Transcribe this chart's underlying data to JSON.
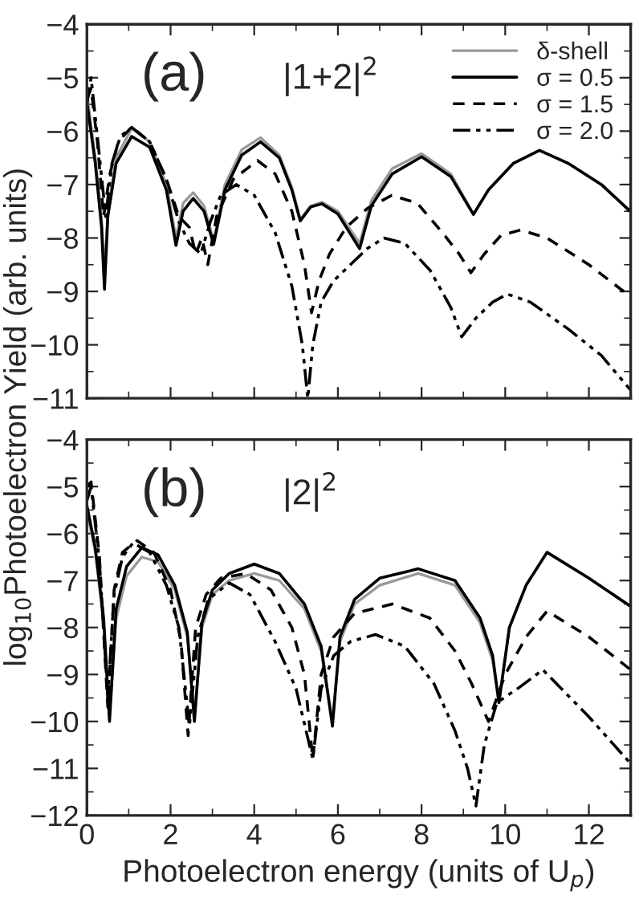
{
  "chart_data": [
    {
      "type": "line",
      "annotations": [
        "(a)",
        "|1+2|$^{2}$"
      ],
      "xlim": [
        0,
        13
      ],
      "xticks": [
        0,
        2,
        4,
        6,
        8,
        10,
        12
      ],
      "ylim": [
        -11,
        -4
      ],
      "yticks": [
        -11,
        -10,
        -9,
        -8,
        -7,
        -6,
        -5,
        -4
      ],
      "tick_labels": "y",
      "legend": "top right",
      "grid": false,
      "series": [
        {
          "name": "δ-shell",
          "color": "#999999",
          "line_style": "solid",
          "x": [
            0,
            0.2,
            0.35,
            0.42,
            0.5,
            0.7,
            1.07,
            1.5,
            1.9,
            2.13,
            2.3,
            2.54,
            2.8,
            3.03,
            3.3,
            3.7,
            4.15,
            4.6,
            4.9,
            5.1,
            5.35,
            5.62,
            6.0,
            6.52,
            6.8,
            7.3,
            8.0,
            8.7,
            9.24,
            9.6,
            10.2,
            10.82,
            11.5,
            12.3,
            13
          ],
          "values": [
            -5.3,
            -6.5,
            -7.6,
            -8.7,
            -7.5,
            -6.5,
            -5.95,
            -6.2,
            -7.0,
            -8.0,
            -7.35,
            -7.15,
            -7.4,
            -8.05,
            -7.0,
            -6.35,
            -6.12,
            -6.45,
            -7.05,
            -7.65,
            -7.4,
            -7.33,
            -7.5,
            -8.1,
            -7.3,
            -6.7,
            -6.42,
            -6.8,
            -7.55,
            -7.1,
            -6.6,
            -6.36,
            -6.6,
            -7.0,
            -7.5
          ]
        },
        {
          "name": "σ = 0.5",
          "color": "#000000",
          "line_style": "solid",
          "x": [
            0,
            0.2,
            0.35,
            0.42,
            0.5,
            0.7,
            1.07,
            1.5,
            1.9,
            2.13,
            2.3,
            2.54,
            2.8,
            3.03,
            3.3,
            3.7,
            4.15,
            4.6,
            4.9,
            5.1,
            5.35,
            5.62,
            6.0,
            6.52,
            6.8,
            7.3,
            8.0,
            8.7,
            9.24,
            9.6,
            10.2,
            10.82,
            11.5,
            12.3,
            13
          ],
          "values": [
            -5.45,
            -6.6,
            -7.8,
            -8.96,
            -7.6,
            -6.6,
            -6.1,
            -6.3,
            -7.1,
            -8.14,
            -7.5,
            -7.26,
            -7.5,
            -8.12,
            -7.1,
            -6.45,
            -6.2,
            -6.5,
            -7.1,
            -7.68,
            -7.42,
            -7.36,
            -7.55,
            -8.2,
            -7.4,
            -6.8,
            -6.48,
            -6.85,
            -7.56,
            -7.1,
            -6.6,
            -6.36,
            -6.6,
            -7.0,
            -7.51
          ]
        },
        {
          "name": "σ = 1.5",
          "color": "#000000",
          "line_style": "dashed",
          "x": [
            0,
            0.1,
            0.25,
            0.4,
            0.55,
            0.75,
            1.07,
            1.5,
            1.9,
            2.2,
            2.45,
            2.6,
            2.75,
            2.89,
            3.1,
            3.5,
            4.08,
            4.5,
            4.9,
            5.2,
            5.37,
            5.55,
            5.8,
            6.2,
            6.7,
            7.29,
            7.9,
            8.5,
            8.9,
            9.18,
            9.5,
            9.9,
            10.37,
            11,
            12,
            13
          ],
          "values": [
            -5.4,
            -5.2,
            -6.2,
            -7.6,
            -6.8,
            -6.2,
            -5.92,
            -6.2,
            -6.9,
            -7.6,
            -7.8,
            -8.3,
            -8.0,
            -8.5,
            -7.6,
            -6.9,
            -6.55,
            -6.8,
            -7.5,
            -8.5,
            -9.4,
            -8.8,
            -8.3,
            -7.8,
            -7.45,
            -7.2,
            -7.35,
            -7.9,
            -8.3,
            -8.65,
            -8.3,
            -7.95,
            -7.85,
            -8.0,
            -8.5,
            -9.1
          ]
        },
        {
          "name": "σ = 2.0",
          "color": "#000000",
          "line_style": "dashdot",
          "x": [
            0,
            0.1,
            0.25,
            0.45,
            0.6,
            0.8,
            1.07,
            1.5,
            1.9,
            2.2,
            2.45,
            2.72,
            2.95,
            3.2,
            3.57,
            4.0,
            4.5,
            4.9,
            5.15,
            5.28,
            5.4,
            5.6,
            5.9,
            6.3,
            6.7,
            7.1,
            7.6,
            8.2,
            8.7,
            8.96,
            9.3,
            9.7,
            10.05,
            10.6,
            11.5,
            12.3,
            13
          ],
          "values": [
            -5.5,
            -5.0,
            -6.1,
            -7.6,
            -6.6,
            -6.1,
            -5.93,
            -6.2,
            -6.9,
            -7.7,
            -8.1,
            -8.3,
            -7.7,
            -7.2,
            -7.0,
            -7.2,
            -7.9,
            -8.9,
            -10.0,
            -11.0,
            -10.0,
            -9.2,
            -8.8,
            -8.5,
            -8.2,
            -8.0,
            -8.1,
            -8.6,
            -9.3,
            -9.85,
            -9.5,
            -9.2,
            -9.05,
            -9.2,
            -9.7,
            -10.2,
            -10.85
          ]
        }
      ]
    },
    {
      "type": "line",
      "annotations": [
        "(b)",
        "|2|$^{2}$"
      ],
      "xlabel": "Photoelectron energy (units of U$_{p}$)",
      "ylabel": "log$_{10}$Photoelectron Yield (arb. units)",
      "xlim": [
        0,
        13
      ],
      "xticks": [
        0,
        2,
        4,
        6,
        8,
        10,
        12
      ],
      "ylim": [
        -12,
        -4
      ],
      "yticks": [
        -12,
        -11,
        -10,
        -9,
        -8,
        -7,
        -6,
        -5,
        -4
      ],
      "grid": false,
      "series": [
        {
          "color": "#999999",
          "line_style": "solid",
          "x": [
            0,
            0.2,
            0.4,
            0.54,
            0.7,
            0.95,
            1.31,
            1.7,
            2.1,
            2.4,
            2.57,
            2.75,
            3.0,
            3.4,
            4.0,
            4.6,
            5.2,
            5.6,
            5.87,
            6.05,
            6.4,
            7.0,
            7.92,
            8.8,
            9.4,
            9.7,
            9.85,
            10.1,
            10.5,
            11.0,
            12.0,
            13
          ],
          "values": [
            -5.5,
            -6.4,
            -7.9,
            -9.9,
            -7.8,
            -6.9,
            -6.5,
            -6.6,
            -7.2,
            -8.2,
            -9.9,
            -8.0,
            -7.3,
            -7.0,
            -6.85,
            -7.0,
            -7.6,
            -8.5,
            -10.0,
            -8.3,
            -7.5,
            -7.1,
            -6.85,
            -7.1,
            -7.9,
            -8.7,
            -9.6,
            -8.0,
            -7.1,
            -6.4,
            -6.95,
            -7.55
          ]
        },
        {
          "color": "#000000",
          "line_style": "solid",
          "x": [
            0,
            0.2,
            0.4,
            0.54,
            0.7,
            0.95,
            1.31,
            1.7,
            2.1,
            2.4,
            2.57,
            2.75,
            3.0,
            3.4,
            4.0,
            4.6,
            5.2,
            5.6,
            5.87,
            6.05,
            6.4,
            7.0,
            7.92,
            8.8,
            9.4,
            9.7,
            9.85,
            10.1,
            10.5,
            11.0,
            12.0,
            13
          ],
          "values": [
            -5.4,
            -6.3,
            -7.8,
            -10.0,
            -7.6,
            -6.7,
            -6.3,
            -6.45,
            -7.1,
            -8.1,
            -10.0,
            -7.9,
            -7.2,
            -6.85,
            -6.65,
            -6.85,
            -7.5,
            -8.4,
            -10.1,
            -8.2,
            -7.4,
            -6.95,
            -6.75,
            -7.0,
            -7.8,
            -8.6,
            -9.6,
            -8.0,
            -7.1,
            -6.4,
            -6.95,
            -7.55
          ]
        },
        {
          "color": "#000000",
          "line_style": "dashed",
          "x": [
            0,
            0.1,
            0.3,
            0.5,
            0.65,
            0.85,
            1.2,
            1.6,
            2.0,
            2.25,
            2.42,
            2.6,
            2.85,
            3.2,
            3.8,
            4.4,
            4.9,
            5.2,
            5.4,
            5.6,
            5.9,
            6.4,
            7.3,
            8.2,
            8.8,
            9.2,
            9.6,
            10.0,
            10.5,
            11.0,
            12.0,
            13
          ],
          "values": [
            -5.0,
            -4.9,
            -6.5,
            -9.7,
            -7.2,
            -6.4,
            -6.15,
            -6.4,
            -7.2,
            -8.3,
            -10.3,
            -8.0,
            -7.3,
            -6.95,
            -6.85,
            -7.2,
            -8.0,
            -9.0,
            -10.8,
            -9.0,
            -8.2,
            -7.7,
            -7.5,
            -7.8,
            -8.5,
            -9.2,
            -10.0,
            -9.0,
            -8.2,
            -7.65,
            -8.2,
            -8.9
          ]
        },
        {
          "color": "#000000",
          "line_style": "dashdot",
          "x": [
            0,
            0.1,
            0.3,
            0.5,
            0.65,
            0.85,
            1.1,
            1.5,
            1.9,
            2.2,
            2.45,
            2.65,
            2.9,
            3.4,
            3.9,
            4.5,
            5.0,
            5.4,
            5.6,
            5.9,
            6.3,
            6.9,
            7.6,
            8.3,
            8.8,
            9.1,
            9.3,
            9.5,
            9.8,
            10.3,
            10.9,
            12.0,
            13
          ],
          "values": [
            -5.3,
            -5.0,
            -6.6,
            -9.5,
            -7.3,
            -6.5,
            -6.2,
            -6.4,
            -7.1,
            -8.0,
            -10.1,
            -8.2,
            -7.4,
            -7.05,
            -7.3,
            -8.3,
            -9.3,
            -10.8,
            -9.3,
            -8.6,
            -8.3,
            -8.15,
            -8.4,
            -9.2,
            -10.2,
            -11.0,
            -11.8,
            -10.5,
            -9.6,
            -9.3,
            -8.9,
            -9.9,
            -10.9
          ]
        }
      ]
    }
  ]
}
